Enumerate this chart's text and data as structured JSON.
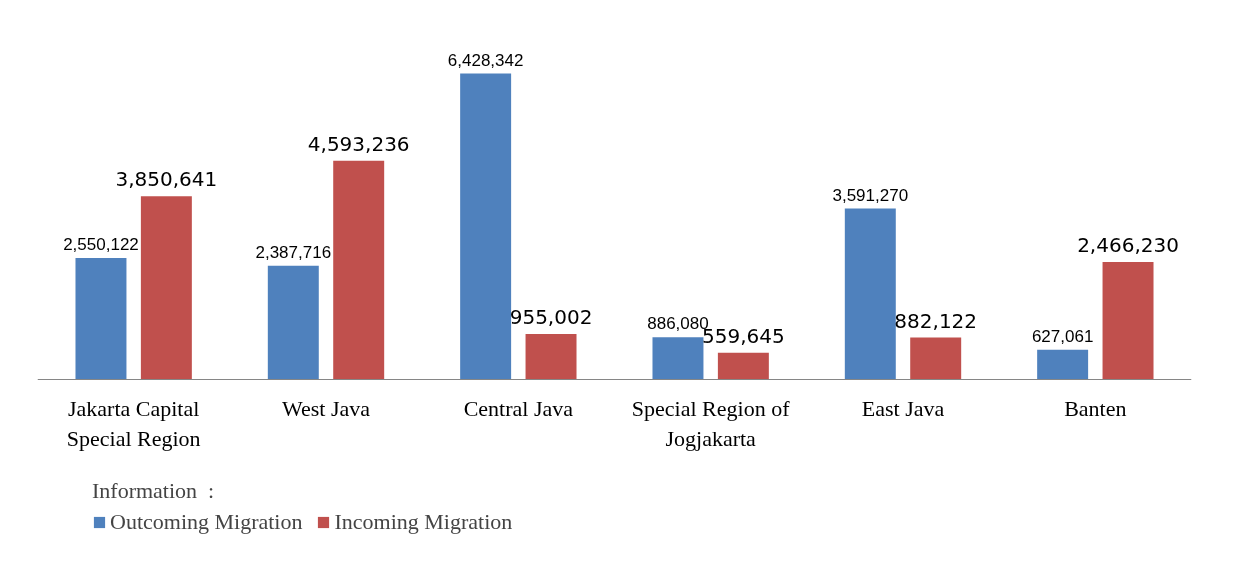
{
  "chart_data": {
    "type": "bar",
    "categories": [
      "Jakarta Capital Special Region",
      "West Java",
      "Central Java",
      "Special Region of Jogjakarta",
      "East Java",
      "Banten"
    ],
    "series": [
      {
        "name": "Outcoming Migration",
        "color": "#4f81bd",
        "values": [
          2550122,
          2387716,
          6428342,
          886080,
          3591270,
          627061
        ],
        "value_labels": [
          "2,550,122",
          "2,387,716",
          "6,428,342",
          "886,080",
          "3,591,270",
          "627,061"
        ]
      },
      {
        "name": "Incoming Migration",
        "color": "#c0504d",
        "values": [
          3850641,
          4593236,
          955002,
          559645,
          882122,
          2466230
        ],
        "value_labels": [
          "3,850,641",
          "4,593,236",
          "955,002",
          "559,645",
          "882,122",
          "2,466,230"
        ]
      }
    ],
    "legend_title": "Information  :",
    "legend": "bottom left"
  }
}
